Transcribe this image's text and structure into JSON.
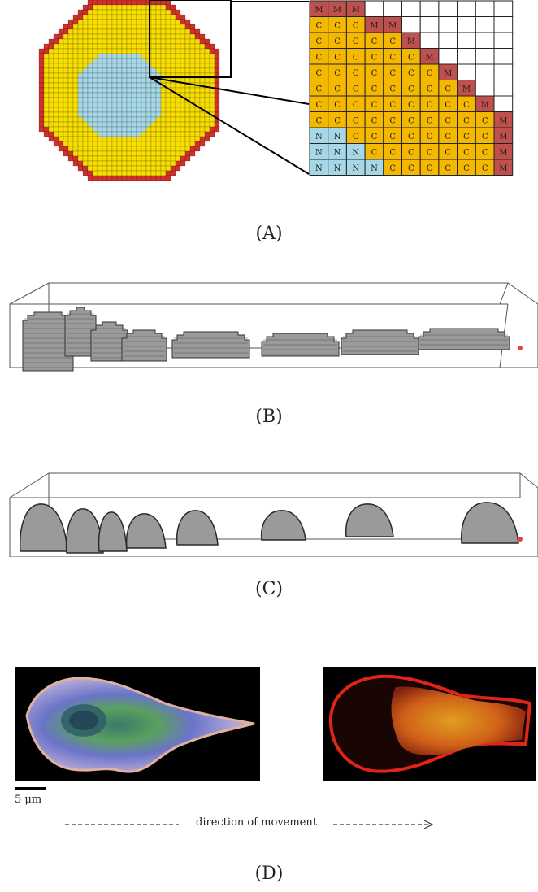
{
  "panels": {
    "a": {
      "label": "(A)"
    },
    "b": {
      "label": "(B)"
    },
    "c": {
      "label": "(C)"
    },
    "d": {
      "label": "(D)"
    }
  },
  "grid_zoom": {
    "rows": [
      [
        "M",
        "M",
        "M",
        "",
        "",
        "",
        "",
        "",
        "",
        "",
        ""
      ],
      [
        "C",
        "C",
        "C",
        "M",
        "M",
        "",
        "",
        "",
        "",
        "",
        ""
      ],
      [
        "C",
        "C",
        "C",
        "C",
        "C",
        "M",
        "",
        "",
        "",
        "",
        ""
      ],
      [
        "C",
        "C",
        "C",
        "C",
        "C",
        "C",
        "M",
        "",
        "",
        "",
        ""
      ],
      [
        "C",
        "C",
        "C",
        "C",
        "C",
        "C",
        "C",
        "M",
        "",
        "",
        ""
      ],
      [
        "C",
        "C",
        "C",
        "C",
        "C",
        "C",
        "C",
        "C",
        "M",
        "",
        ""
      ],
      [
        "C",
        "C",
        "C",
        "C",
        "C",
        "C",
        "C",
        "C",
        "C",
        "M",
        ""
      ],
      [
        "C",
        "C",
        "C",
        "C",
        "C",
        "C",
        "C",
        "C",
        "C",
        "C",
        "M"
      ],
      [
        "N",
        "N",
        "C",
        "C",
        "C",
        "C",
        "C",
        "C",
        "C",
        "C",
        "M"
      ],
      [
        "N",
        "N",
        "N",
        "C",
        "C",
        "C",
        "C",
        "C",
        "C",
        "C",
        "M"
      ],
      [
        "N",
        "N",
        "N",
        "N",
        "C",
        "C",
        "C",
        "C",
        "C",
        "C",
        "M"
      ]
    ]
  },
  "colors": {
    "membrane": "#d2312b",
    "membrane_grid": "#c0504d",
    "cytoplasm": "#f7dd00",
    "cytoplasm_grid": "#f5b800",
    "nucleus": "#a6d7e6",
    "cell_gray": "#9a9a9a",
    "marker_red": "#e8443a"
  },
  "microscopy": {
    "scale_text": "5 μm",
    "direction_text": "direction of movement"
  }
}
